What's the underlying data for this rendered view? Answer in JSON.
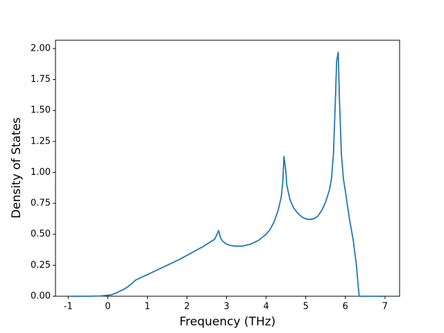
{
  "chart_data": {
    "type": "line",
    "x_label": "Frequency (THz)",
    "y_label": "Density of States",
    "xlim": [
      -1.32,
      7.37
    ],
    "ylim": [
      0,
      2.067
    ],
    "xticks": [
      -1,
      0,
      1,
      2,
      3,
      4,
      5,
      6,
      7
    ],
    "yticks": [
      {
        "value": 0,
        "label": "0.00"
      },
      {
        "value": 0.25,
        "label": "0.25"
      },
      {
        "value": 0.5,
        "label": "0.50"
      },
      {
        "value": 0.75,
        "label": "0.75"
      },
      {
        "value": 1,
        "label": "1.00"
      },
      {
        "value": 1.25,
        "label": "1.25"
      },
      {
        "value": 1.5,
        "label": "1.50"
      },
      {
        "value": 1.75,
        "label": "1.75"
      },
      {
        "value": 2,
        "label": "2.00"
      }
    ],
    "grid": false,
    "series": [
      {
        "color": "#1f77b4",
        "x": [
          -0.95,
          -0.5,
          -0.2,
          0,
          0.1,
          0.2,
          0.3,
          0.4,
          0.5,
          0.6,
          0.7,
          0.8,
          1.0,
          1.2,
          1.4,
          1.6,
          1.8,
          2.0,
          2.2,
          2.4,
          2.6,
          2.7,
          2.8,
          2.85,
          2.9,
          3.0,
          3.1,
          3.2,
          3.4,
          3.6,
          3.8,
          4.0,
          4.1,
          4.2,
          4.3,
          4.38,
          4.42,
          4.45,
          4.5,
          4.52,
          4.6,
          4.7,
          4.8,
          4.9,
          5.0,
          5.1,
          5.2,
          5.3,
          5.4,
          5.5,
          5.6,
          5.65,
          5.7,
          5.75,
          5.78,
          5.82,
          5.85,
          5.9,
          5.95,
          6.0,
          6.1,
          6.2,
          6.28,
          6.32,
          6.35,
          6.5,
          7.0
        ],
        "values": [
          0,
          0,
          0.002,
          0.008,
          0.012,
          0.025,
          0.04,
          0.055,
          0.075,
          0.1,
          0.13,
          0.145,
          0.175,
          0.205,
          0.235,
          0.265,
          0.295,
          0.33,
          0.365,
          0.4,
          0.44,
          0.46,
          0.53,
          0.47,
          0.445,
          0.42,
          0.41,
          0.405,
          0.405,
          0.42,
          0.45,
          0.5,
          0.54,
          0.6,
          0.69,
          0.8,
          0.92,
          1.13,
          1.0,
          0.9,
          0.78,
          0.71,
          0.67,
          0.64,
          0.625,
          0.62,
          0.625,
          0.645,
          0.69,
          0.76,
          0.86,
          0.95,
          1.15,
          1.6,
          1.9,
          1.97,
          1.6,
          1.15,
          0.95,
          0.85,
          0.63,
          0.45,
          0.25,
          0.1,
          0,
          0,
          0
        ]
      }
    ]
  }
}
